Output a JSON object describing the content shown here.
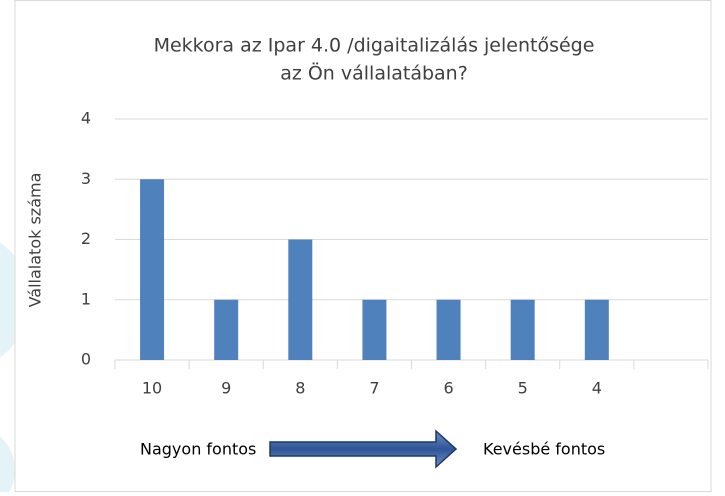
{
  "chart_data": {
    "type": "bar",
    "title": [
      "Mekkora az Ipar 4.0 /digaitalizálás jelentősége",
      "az Ön vállalatában?"
    ],
    "y_label": "Vállalatok száma",
    "categories": [
      "10",
      "9",
      "8",
      "7",
      "6",
      "5",
      "4",
      null
    ],
    "values": [
      3,
      1,
      2,
      1,
      1,
      1,
      1,
      null
    ],
    "color": "#4f81bd",
    "ylim": [
      0,
      4
    ],
    "yticks": [
      0,
      1,
      2,
      3,
      4
    ],
    "grid": true,
    "annotations": [
      "Nagyon fontos",
      "Kevésbé fontos"
    ]
  }
}
